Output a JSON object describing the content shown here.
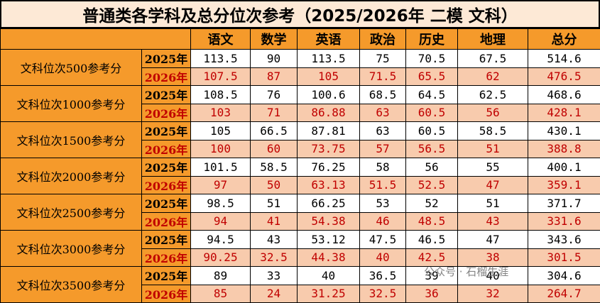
{
  "title": "普通类各学科及总分位次参考（2025/2026年 二模 文科）",
  "columns": [
    "语文",
    "数学",
    "英语",
    "政治",
    "历史",
    "地理",
    "总分"
  ],
  "rows": [
    {
      "label": "文科位次500参考分",
      "y2025": {
        "year": "2025年",
        "values": [
          "113.5",
          "90",
          "113.5",
          "75",
          "70.5",
          "67.5",
          "514.6"
        ]
      },
      "y2026": {
        "year": "2026年",
        "values": [
          "107.5",
          "87",
          "105",
          "71.5",
          "65.5",
          "62",
          "476.5"
        ]
      }
    },
    {
      "label": "文科位次1000参考分",
      "y2025": {
        "year": "2025年",
        "values": [
          "108.5",
          "76",
          "100.6",
          "68.5",
          "64.5",
          "62.5",
          "468.6"
        ]
      },
      "y2026": {
        "year": "2026年",
        "values": [
          "103",
          "71",
          "86.88",
          "63",
          "60.5",
          "56",
          "428.1"
        ]
      }
    },
    {
      "label": "文科位次1500参考分",
      "y2025": {
        "year": "2025年",
        "values": [
          "105",
          "66.5",
          "87.81",
          "63",
          "60.5",
          "58.5",
          "430.1"
        ]
      },
      "y2026": {
        "year": "2026年",
        "values": [
          "100",
          "60",
          "73.75",
          "57",
          "56.5",
          "51",
          "388.8"
        ]
      }
    },
    {
      "label": "文科位次2000参考分",
      "y2025": {
        "year": "2025年",
        "values": [
          "101.5",
          "58.5",
          "76.25",
          "58",
          "56",
          "55",
          "400.1"
        ]
      },
      "y2026": {
        "year": "2026年",
        "values": [
          "97",
          "50",
          "63.13",
          "51.5",
          "52.5",
          "47",
          "359.1"
        ]
      }
    },
    {
      "label": "文科位次2500参考分",
      "y2025": {
        "year": "2025年",
        "values": [
          "98.5",
          "51",
          "66.25",
          "53",
          "52",
          "51",
          "371.7"
        ]
      },
      "y2026": {
        "year": "2026年",
        "values": [
          "94",
          "41",
          "54.38",
          "46",
          "48.5",
          "43",
          "331.6"
        ]
      }
    },
    {
      "label": "文科位次3000参考分",
      "y2025": {
        "year": "2025年",
        "values": [
          "94.5",
          "43",
          "53.12",
          "47.5",
          "46.5",
          "47",
          "343.6"
        ]
      },
      "y2026": {
        "year": "2026年",
        "values": [
          "90.25",
          "32.5",
          "44.38",
          "40",
          "42.5",
          "38",
          "301.5"
        ]
      }
    },
    {
      "label": "文科位次3500参考分",
      "y2025": {
        "year": "2025年",
        "values": [
          "89",
          "33",
          "40",
          "36.5",
          "39",
          "40",
          "304.6"
        ]
      },
      "y2026": {
        "year": "2026年",
        "values": [
          "85",
          "24",
          "31.25",
          "32.5",
          "36",
          "32",
          "264.7"
        ]
      }
    }
  ],
  "watermark": "公众号 · 石榴生涯",
  "colors": {
    "header": "#f59a2b",
    "row2026": "#f8cbad",
    "text2026": "#c00000"
  }
}
